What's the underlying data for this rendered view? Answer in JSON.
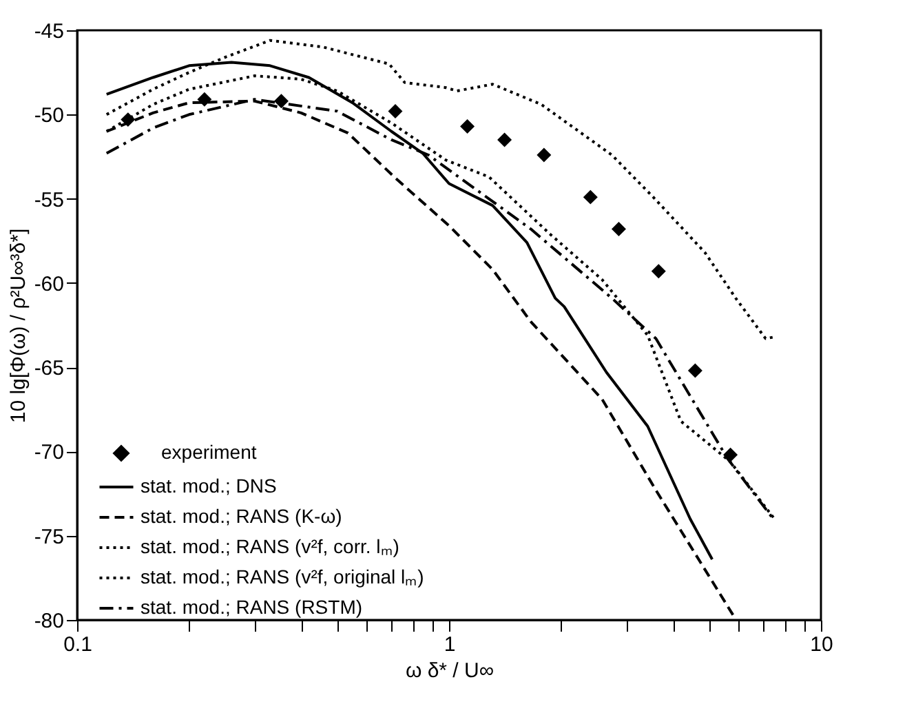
{
  "chart_data": {
    "type": "line",
    "xlabel": "ω δ* / U∞",
    "ylabel": "10 lg[Φ(ω) / ρ²U∞³δ*]",
    "log": "x",
    "grid": false,
    "legend": "bottom left",
    "xlim": [
      0.1,
      10
    ],
    "ylim": [
      -80,
      -45
    ],
    "xticks": [
      0.1,
      {
        "value": 0.2,
        "label": null
      },
      {
        "value": 0.3,
        "label": null
      },
      {
        "value": 0.4,
        "label": null
      },
      {
        "value": 0.5,
        "label": null
      },
      {
        "value": 0.6,
        "label": null
      },
      {
        "value": 0.7,
        "label": null
      },
      {
        "value": 0.8,
        "label": null
      },
      {
        "value": 0.9,
        "label": null
      },
      1,
      {
        "value": 2,
        "label": null
      },
      {
        "value": 3,
        "label": null
      },
      {
        "value": 4,
        "label": null
      },
      {
        "value": 5,
        "label": null
      },
      {
        "value": 6,
        "label": null
      },
      {
        "value": 7,
        "label": null
      },
      {
        "value": 8,
        "label": null
      },
      {
        "value": 9,
        "label": null
      },
      10
    ],
    "yticks": [
      -80,
      -75,
      -70,
      -65,
      -60,
      -55,
      -50,
      -45
    ],
    "series": [
      {
        "name": "experiment",
        "type": "scatter",
        "marker": "diamond",
        "color": "#000000",
        "x": [
          0.137,
          0.22,
          0.354,
          0.717,
          1.12,
          1.41,
          1.8,
          2.4,
          2.86,
          3.66,
          4.59,
          5.71
        ],
        "values": [
          -50.3,
          -49.1,
          -49.2,
          -49.8,
          -50.7,
          -51.5,
          -52.4,
          -54.9,
          -56.8,
          -59.3,
          -65.2,
          -70.2
        ]
      },
      {
        "name": "stat. mod.; DNS",
        "line_style": "solid",
        "color": "#000000",
        "x": [
          0.12,
          0.16,
          0.2,
          0.26,
          0.33,
          0.42,
          0.55,
          0.7,
          0.85,
          1.0,
          1.31,
          1.62,
          1.93,
          2.04,
          2.65,
          3.42,
          4.45,
          5.1
        ],
        "values": [
          -48.8,
          -47.8,
          -47.1,
          -46.9,
          -47.1,
          -47.8,
          -49.3,
          -51.0,
          -52.3,
          -54.1,
          -55.4,
          -57.6,
          -60.9,
          -61.4,
          -65.3,
          -68.5,
          -74.0,
          -76.4
        ]
      },
      {
        "name": "stat. mod.; RANS (K-ω)",
        "line_style": "dashed",
        "color": "#000000",
        "x": [
          0.12,
          0.16,
          0.2,
          0.3,
          0.4,
          0.535,
          0.72,
          1.0,
          1.31,
          1.66,
          2.58,
          3.6,
          5.8
        ],
        "values": [
          -51.0,
          -49.9,
          -49.3,
          -49.2,
          -49.9,
          -51.1,
          -53.8,
          -56.6,
          -59.2,
          -62.3,
          -66.9,
          -72.3,
          -79.7
        ]
      },
      {
        "name": "stat. mod.; RANS (v²f, corr. lₘ)",
        "line_style": "dotted",
        "color": "#000000",
        "x": [
          0.12,
          0.16,
          0.2,
          0.3,
          0.4,
          0.5,
          0.7,
          0.98,
          1.28,
          1.87,
          2.58,
          3.42,
          4.2,
          5.7,
          7.5
        ],
        "values": [
          -51.0,
          -49.4,
          -48.5,
          -47.7,
          -47.9,
          -48.6,
          -50.5,
          -52.7,
          -53.7,
          -57.1,
          -59.8,
          -63.1,
          -68.2,
          -70.6,
          -74.0
        ]
      },
      {
        "name": "stat. mod.; RANS (v²f, original lₘ)",
        "line_style": "dotted",
        "color": "#000000",
        "x": [
          0.12,
          0.16,
          0.2,
          0.25,
          0.33,
          0.46,
          0.69,
          0.76,
          0.98,
          1.05,
          1.31,
          1.77,
          2.74,
          3.54,
          4.88,
          5.9,
          7.1,
          7.5
        ],
        "values": [
          -50.0,
          -48.5,
          -47.5,
          -46.6,
          -45.6,
          -46.0,
          -47.0,
          -48.1,
          -48.4,
          -48.6,
          -48.2,
          -49.4,
          -52.4,
          -54.9,
          -58.2,
          -60.9,
          -63.3,
          -63.2
        ]
      },
      {
        "name": "stat. mod.; RANS (RSTM)",
        "line_style": "dashdot",
        "color": "#000000",
        "x": [
          0.12,
          0.16,
          0.2,
          0.3,
          0.5,
          0.7,
          0.88,
          1.28,
          1.66,
          2.74,
          3.6,
          5.6,
          7.5
        ],
        "values": [
          -52.3,
          -50.8,
          -50.0,
          -49.1,
          -49.8,
          -51.5,
          -52.4,
          -55.0,
          -56.8,
          -60.9,
          -63.3,
          -70.4,
          -74.1
        ]
      }
    ]
  }
}
